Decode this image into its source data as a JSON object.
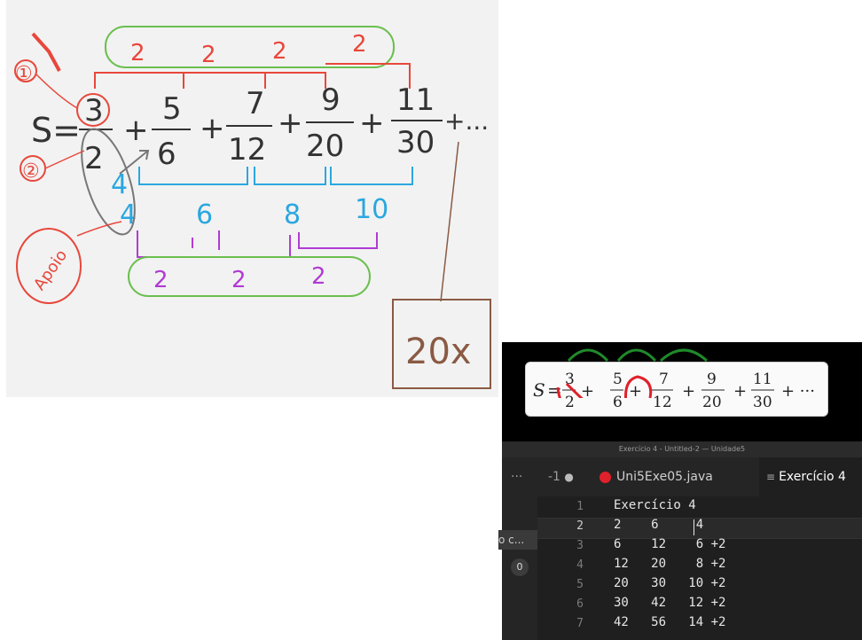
{
  "whiteboard": {
    "s_label": "S=",
    "fractions": [
      {
        "num": "3",
        "den": "2"
      },
      {
        "num": "5",
        "den": "6"
      },
      {
        "num": "7",
        "den": "12"
      },
      {
        "num": "9",
        "den": "20"
      },
      {
        "num": "11",
        "den": "30"
      }
    ],
    "plus": "+",
    "ellipsis": "+...",
    "top_diffs": [
      "2",
      "2",
      "2",
      "2"
    ],
    "den_diffs": [
      "4",
      "6",
      "8",
      "10"
    ],
    "second_diffs": [
      "2",
      "2",
      "2"
    ],
    "side_notes": [
      "①",
      "②",
      "Apoio"
    ],
    "box_note": "20x",
    "colors": {
      "red": "#e8473b",
      "green": "#6bbf4e",
      "cyan": "#2aa7e0",
      "purple": "#b03bd4",
      "brown": "#8a5a44",
      "ink": "#333333",
      "gray": "#777777"
    }
  },
  "formula": {
    "s": "S",
    "equals": "=",
    "fractions": [
      {
        "num": "3",
        "den": "2"
      },
      {
        "num": "5",
        "den": "6"
      },
      {
        "num": "7",
        "den": "12"
      },
      {
        "num": "9",
        "den": "20"
      },
      {
        "num": "11",
        "den": "30"
      }
    ],
    "plus": "+",
    "tail": "+ ···"
  },
  "editor": {
    "window_title": "Exercício 4 - Untitled-2 — Unidade5",
    "sidebar_more": "···",
    "sidebar_truncated": "o c...",
    "sidebar_badge": "0",
    "tab_partial_label": "-1",
    "tab_file_label": "Uni5Exe05.java",
    "tab_active_label": "Exercício 4",
    "lines": [
      {
        "num": "1",
        "text": "Exercício 4"
      },
      {
        "num": "2",
        "text": "2    6     4"
      },
      {
        "num": "3",
        "text": "6    12    6 +2"
      },
      {
        "num": "4",
        "text": "12   20    8 +2"
      },
      {
        "num": "5",
        "text": "20   30   10 +2"
      },
      {
        "num": "6",
        "text": "30   42   12 +2"
      },
      {
        "num": "7",
        "text": "42   56   14 +2"
      }
    ]
  }
}
